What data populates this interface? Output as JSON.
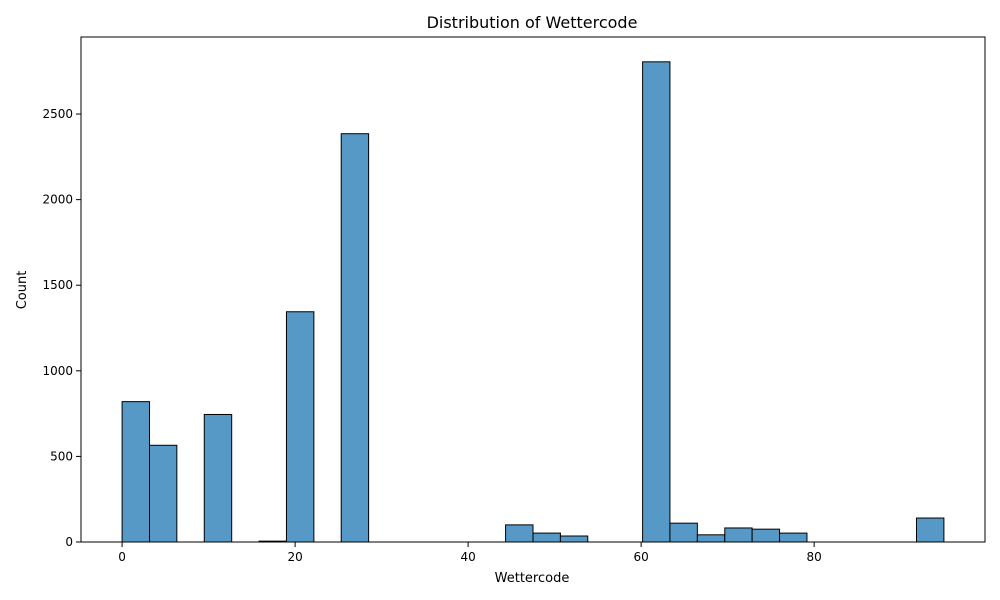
{
  "chart_data": {
    "type": "bar",
    "title": "Distribution of Wettercode",
    "xlabel": "Wettercode",
    "ylabel": "Count",
    "xlim": [
      -4.75,
      99.75
    ],
    "ylim": [
      0,
      2950
    ],
    "x_ticks": [
      0,
      20,
      40,
      60,
      80
    ],
    "y_ticks": [
      0,
      500,
      1000,
      1500,
      2000,
      2500
    ],
    "grid": false,
    "bar_color": "#5799C6",
    "edge_color": "#000000",
    "bins": [
      {
        "x0": 0.0,
        "x1": 3.17,
        "count": 820
      },
      {
        "x0": 3.17,
        "x1": 6.33,
        "count": 565
      },
      {
        "x0": 9.5,
        "x1": 12.67,
        "count": 745
      },
      {
        "x0": 15.83,
        "x1": 19.0,
        "count": 5
      },
      {
        "x0": 19.0,
        "x1": 22.17,
        "count": 1345
      },
      {
        "x0": 25.33,
        "x1": 28.5,
        "count": 2385
      },
      {
        "x0": 44.33,
        "x1": 47.5,
        "count": 100
      },
      {
        "x0": 47.5,
        "x1": 50.67,
        "count": 52
      },
      {
        "x0": 50.67,
        "x1": 53.83,
        "count": 35
      },
      {
        "x0": 60.17,
        "x1": 63.33,
        "count": 2805
      },
      {
        "x0": 63.33,
        "x1": 66.5,
        "count": 110
      },
      {
        "x0": 66.5,
        "x1": 69.67,
        "count": 42
      },
      {
        "x0": 69.67,
        "x1": 72.83,
        "count": 82
      },
      {
        "x0": 72.83,
        "x1": 76.0,
        "count": 75
      },
      {
        "x0": 76.0,
        "x1": 79.17,
        "count": 52
      },
      {
        "x0": 91.83,
        "x1": 95.0,
        "count": 140
      }
    ]
  }
}
